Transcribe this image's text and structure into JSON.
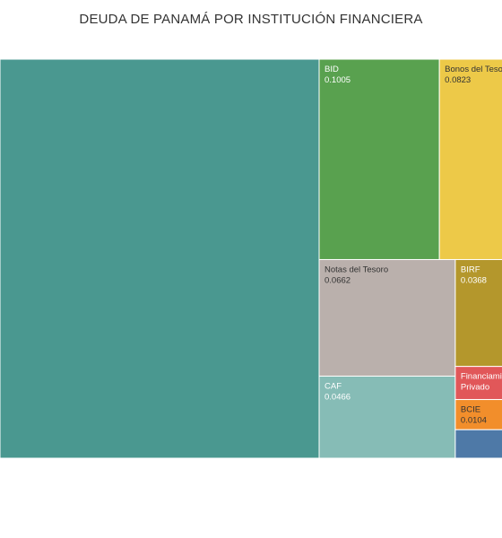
{
  "chart_data": {
    "type": "treemap",
    "title": "DEUDA DE PANAMÁ POR INSTITUCIÓN FINANCIERA",
    "items": [
      {
        "label": "",
        "value": 0.55,
        "color": "#4a9890"
      },
      {
        "label": "BID",
        "value": 0.1005,
        "value_label": "0.1005",
        "color": "#59a14f",
        "text_color": "#ffffff"
      },
      {
        "label": "Bonos del Tesoro",
        "value": 0.0823,
        "value_label": "0.0823",
        "color": "#edc948",
        "text_color": "#333333"
      },
      {
        "label": "Notas del Tesoro",
        "value": 0.0662,
        "value_label": "0.0662",
        "color": "#bab0ac",
        "text_color": "#333333"
      },
      {
        "label": "CAF",
        "value": 0.0466,
        "value_label": "0.0466",
        "color": "#86bcb6",
        "text_color": "#ffffff"
      },
      {
        "label": "BIRF",
        "value": 0.0368,
        "value_label": "0.0368",
        "color": "#b4972c",
        "text_color": "#ffffff"
      },
      {
        "label": "Financiamiento Privado",
        "value": 0.0114,
        "value_label": "",
        "color": "#e15759",
        "text_color": "#ffffff"
      },
      {
        "label": "BCIE",
        "value": 0.0104,
        "value_label": "0.0104",
        "color": "#f28e2b",
        "text_color": "#333333"
      },
      {
        "label": "",
        "value": 0.0098,
        "value_label": "",
        "color": "#4e79a7",
        "text_color": "#ffffff"
      }
    ]
  }
}
